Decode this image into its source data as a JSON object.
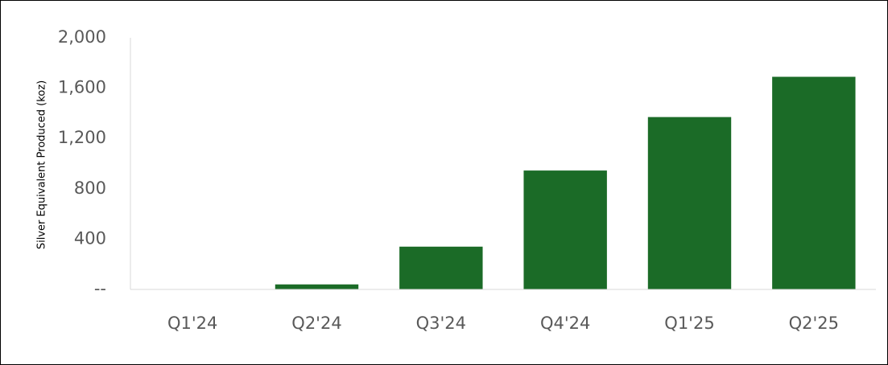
{
  "chart_data": {
    "type": "bar",
    "y_label": "Silver Equivalent Produced (koz)",
    "categories": [
      "Q1'24",
      "Q2'24",
      "Q3'24",
      "Q4'24",
      "Q1'25",
      "Q2'25"
    ],
    "values": [
      0,
      40,
      340,
      945,
      1370,
      1690
    ],
    "color": "#1b6b27",
    "ylim": [
      0,
      2000
    ],
    "yticks": [
      {
        "value": 0,
        "label": "--"
      },
      400,
      800,
      {
        "value": 1200,
        "label": "1,200"
      },
      {
        "value": 1600,
        "label": "1,600"
      },
      {
        "value": 2000,
        "label": "2,000"
      }
    ],
    "grid": false
  }
}
